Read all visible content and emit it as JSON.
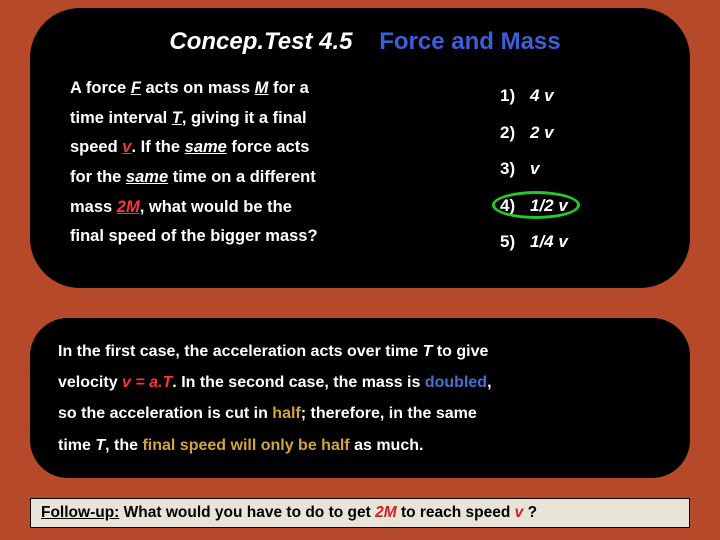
{
  "title": {
    "part1": "Concep.Test 4.5",
    "part2": "Force and Mass",
    "colors": {
      "part1": "#ffffff",
      "part2": "#3c5fd8"
    }
  },
  "question": {
    "line1_a": "A force ",
    "line1_F": "F",
    "line1_b": " acts on mass ",
    "line1_M": "M",
    "line1_c": " for a",
    "line2_a": "time interval ",
    "line2_T": "T",
    "line2_b": ", giving it a final",
    "line3_a": "speed ",
    "line3_v": "v",
    "line3_b": ".  If the ",
    "line3_same": "same",
    "line3_c": " force acts",
    "line4_a": "for the ",
    "line4_same": "same",
    "line4_b": " time on a different",
    "line5_a": "mass ",
    "line5_2M": "2M",
    "line5_b": ", what would be the",
    "line6": "final speed of the bigger mass?"
  },
  "answers": [
    {
      "num": "1)",
      "val": "4 v"
    },
    {
      "num": "2)",
      "val": "2 v"
    },
    {
      "num": "3)",
      "val": " v"
    },
    {
      "num": "4)",
      "val": "1/2 v"
    },
    {
      "num": "5)",
      "val": "1/4 v"
    }
  ],
  "correct_index": 3,
  "highlight_color": "#22cc22",
  "explanation": {
    "l1_a": "In the first case, the acceleration acts over time ",
    "l1_T": "T",
    "l1_b": " to give",
    "l2_a": "velocity ",
    "l2_v": "v",
    "l2_eq": "  =  ",
    "l2_aT": "a.T",
    "l2_b": ".  In the second case, the mass is ",
    "l2_doubled": "doubled",
    "l2_c": ",",
    "l3_a": "so the acceleration is cut in ",
    "l3_half": "half",
    "l3_b": "; therefore, in the same",
    "l4_a": "time ",
    "l4_T": "T",
    "l4_b": ", the ",
    "l4_final": "final speed will only be half",
    "l4_c": " as much."
  },
  "followup": {
    "label": "Follow-up:",
    "text_a": "  What would you have to do to get ",
    "M2": "2M",
    "text_b": " to reach speed ",
    "vf": "v",
    "text_c": " ?"
  },
  "colors": {
    "page_bg": "#b5492a",
    "panel_bg": "#000000",
    "text": "#ffffff",
    "red": "#ff3333",
    "blue": "#4a6fd4",
    "gold": "#d4a43c",
    "followup_bg": "#e8e4d8"
  }
}
